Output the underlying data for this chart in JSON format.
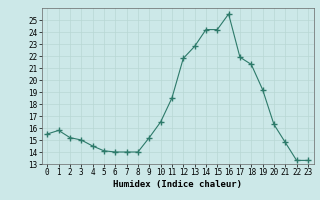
{
  "x": [
    0,
    1,
    2,
    3,
    4,
    5,
    6,
    7,
    8,
    9,
    10,
    11,
    12,
    13,
    14,
    15,
    16,
    17,
    18,
    19,
    20,
    21,
    22,
    23
  ],
  "y": [
    15.5,
    15.8,
    15.2,
    15.0,
    14.5,
    14.1,
    14.0,
    14.0,
    14.0,
    15.2,
    16.5,
    18.5,
    21.8,
    22.8,
    24.2,
    24.2,
    25.5,
    21.9,
    21.3,
    19.2,
    16.3,
    14.8,
    13.3,
    13.3
  ],
  "xlabel": "Humidex (Indice chaleur)",
  "ylabel": "",
  "xlim": [
    -0.5,
    23.5
  ],
  "ylim": [
    13,
    26
  ],
  "yticks": [
    13,
    14,
    15,
    16,
    17,
    18,
    19,
    20,
    21,
    22,
    23,
    24,
    25
  ],
  "xticks": [
    0,
    1,
    2,
    3,
    4,
    5,
    6,
    7,
    8,
    9,
    10,
    11,
    12,
    13,
    14,
    15,
    16,
    17,
    18,
    19,
    20,
    21,
    22,
    23
  ],
  "xtick_labels": [
    "0",
    "1",
    "2",
    "3",
    "4",
    "5",
    "6",
    "7",
    "8",
    "9",
    "10",
    "11",
    "12",
    "13",
    "14",
    "15",
    "16",
    "17",
    "18",
    "19",
    "20",
    "21",
    "22",
    "23"
  ],
  "line_color": "#2d7a6a",
  "marker_color": "#2d7a6a",
  "bg_color": "#cce8e8",
  "grid_color": "#b8d8d4",
  "label_fontsize": 6.5,
  "tick_fontsize": 5.5
}
